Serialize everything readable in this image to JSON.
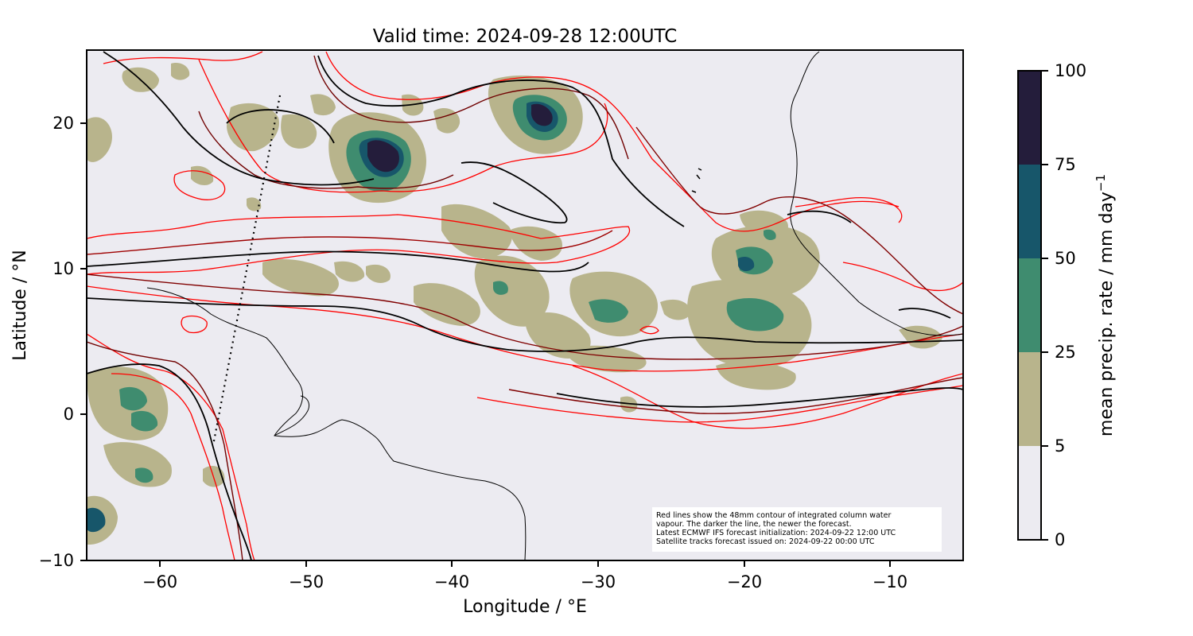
{
  "title": "Valid time: 2024-09-28 12:00UTC",
  "xlabel": "Longitude / °E",
  "ylabel": "Latitude / °N",
  "x_ticks": [
    "−60",
    "−50",
    "−40",
    "−30",
    "−20",
    "−10"
  ],
  "y_ticks": [
    "20",
    "10",
    "0",
    "−10"
  ],
  "colorbar": {
    "label": "mean precip. rate / mm day",
    "label_sup": "−1",
    "ticks": [
      "100",
      "75",
      "50",
      "25",
      "5",
      "0"
    ],
    "levels": [
      0,
      5,
      25,
      50,
      75,
      100
    ],
    "colors": [
      "#ecebf1",
      "#b8b48c",
      "#3f8c6f",
      "#17566a",
      "#241d3b"
    ]
  },
  "annotation": {
    "line1": "Red lines show the 48mm contour of integrated column water",
    "line2": "vapour. The darker the line, the newer the forecast.",
    "line3": "Latest ECMWF IFS forecast initialization: 2024-09-22 12:00 UTC",
    "line4": "Satellite tracks forecast issued on: 2024-09-22 00:00 UTC"
  },
  "chart_data": {
    "type": "map",
    "xlim": [
      -65,
      -5
    ],
    "ylim": [
      -10,
      25
    ],
    "background_color": "#ecebf1",
    "contour_colors": [
      "#ff0000",
      "#b00000",
      "#600000",
      "#000000"
    ],
    "precip_features": [
      {
        "lon": -44.5,
        "lat": 17.5,
        "max_level": 100
      },
      {
        "lon": -33.5,
        "lat": 20.5,
        "max_level": 100
      },
      {
        "lon": -21.0,
        "lat": 8.5,
        "max_level": 50
      },
      {
        "lon": -27.5,
        "lat": 7.5,
        "max_level": 50
      },
      {
        "lon": -61.5,
        "lat": 0.5,
        "max_level": 50
      },
      {
        "lon": -64.0,
        "lat": -7.5,
        "max_level": 75
      }
    ],
    "satellite_track": [
      [
        -51.7,
        22
      ],
      [
        -56.5,
        -2
      ]
    ]
  }
}
